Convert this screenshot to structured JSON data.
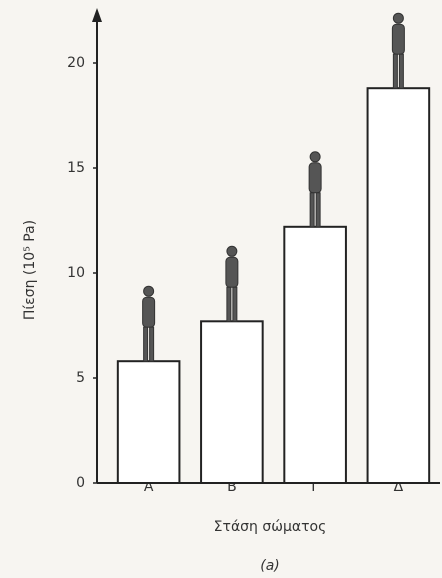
{
  "chart_data": {
    "type": "bar",
    "y_label": "Πίεση (10⁵ Pa)",
    "x_label": "Στάση σώματος",
    "caption": "(a)",
    "categories": [
      "Α",
      "Β",
      "Γ",
      "Δ"
    ],
    "values": [
      5.8,
      7.7,
      12.2,
      18.8
    ],
    "color": "#ffffff",
    "ylim": [
      0,
      22
    ],
    "yticks": [
      0,
      5,
      10,
      15,
      20
    ],
    "grid": false
  }
}
